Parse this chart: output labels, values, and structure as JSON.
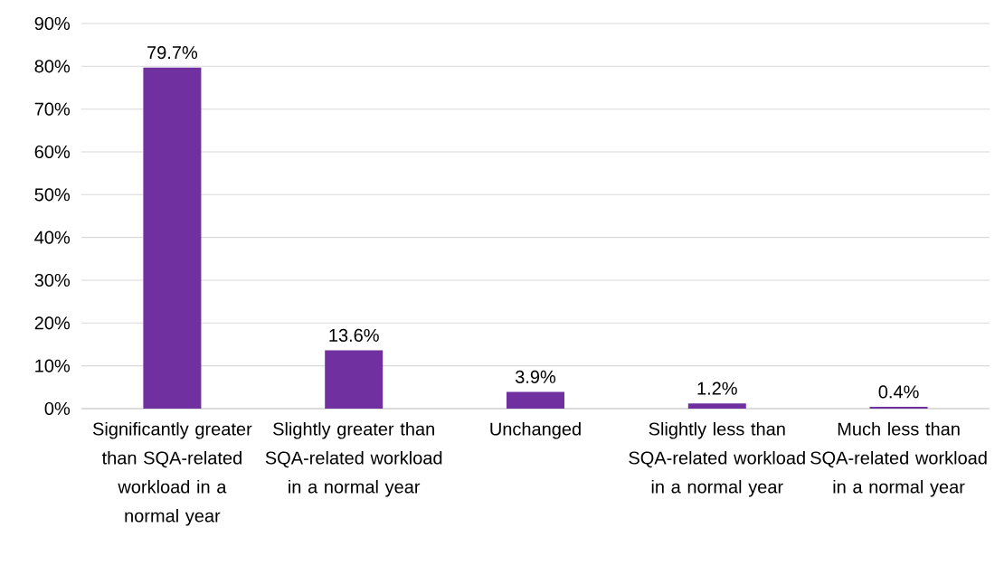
{
  "chart_data": {
    "type": "bar",
    "categories": [
      "Significantly greater than SQA-related workload in a normal year",
      "Slightly greater than SQA-related workload in a normal year",
      "Unchanged",
      "Slightly less than SQA-related workload in a normal year",
      "Much less than SQA-related workload in a normal year"
    ],
    "values": [
      79.7,
      13.6,
      3.9,
      1.2,
      0.4
    ],
    "value_labels": [
      "79.7%",
      "13.6%",
      "3.9%",
      "1.2%",
      "0.4%"
    ],
    "color": "#7030a0",
    "ylim": [
      0,
      90
    ],
    "yticks": [
      {
        "value": 0,
        "label": "0%"
      },
      {
        "value": 10,
        "label": "10%"
      },
      {
        "value": 20,
        "label": "20%"
      },
      {
        "value": 30,
        "label": "30%"
      },
      {
        "value": 40,
        "label": "40%"
      },
      {
        "value": 50,
        "label": "50%"
      },
      {
        "value": 60,
        "label": "60%"
      },
      {
        "value": 70,
        "label": "70%"
      },
      {
        "value": 80,
        "label": "80%"
      },
      {
        "value": 90,
        "label": "90%"
      }
    ],
    "grid": "y"
  }
}
